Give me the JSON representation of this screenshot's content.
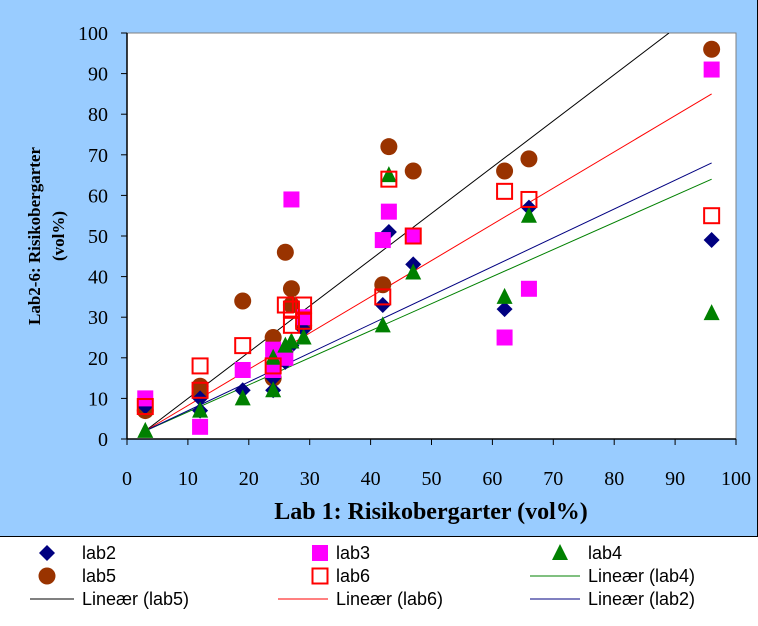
{
  "chart_data": {
    "type": "scatter",
    "xlabel": "Lab 1: Risikobergarter (vol%)",
    "ylabel_line1": "Lab2-6: Risikobergarter",
    "ylabel_line2": "(vol%)",
    "xlim": [
      0,
      100
    ],
    "ylim": [
      0,
      100
    ],
    "x_ticks": [
      "0",
      "10",
      "20",
      "30",
      "40",
      "50",
      "60",
      "70",
      "80",
      "90",
      "100"
    ],
    "y_ticks": [
      "0",
      "10",
      "20",
      "30",
      "40",
      "50",
      "60",
      "70",
      "80",
      "90",
      "100"
    ],
    "grid": "none",
    "legend_position": "bottom",
    "series": [
      {
        "name": "lab2",
        "marker": "diamond",
        "color": "#000080",
        "x": [
          3,
          12,
          12,
          19,
          24,
          24,
          26,
          27,
          29,
          42,
          43,
          47,
          62,
          66,
          96
        ],
        "y": [
          8,
          7,
          10,
          12,
          12,
          15,
          19,
          23,
          27,
          33,
          51,
          43,
          32,
          57,
          49
        ]
      },
      {
        "name": "lab3",
        "marker": "square",
        "color": "#ff00ff",
        "x": [
          3,
          12,
          19,
          24,
          24,
          26,
          27,
          29,
          42,
          43,
          47,
          62,
          66,
          96
        ],
        "y": [
          10,
          3,
          17,
          17,
          22,
          20,
          59,
          30,
          49,
          56,
          50,
          25,
          37,
          91
        ]
      },
      {
        "name": "lab4",
        "marker": "triangle",
        "color": "#008000",
        "x": [
          3,
          12,
          19,
          24,
          24,
          26,
          27,
          29,
          42,
          43,
          47,
          62,
          66,
          96
        ],
        "y": [
          2,
          7,
          10,
          12,
          20,
          23,
          24,
          25,
          28,
          65,
          41,
          35,
          55,
          31
        ]
      },
      {
        "name": "lab5",
        "marker": "circle",
        "color": "#993300",
        "x": [
          3,
          12,
          12,
          19,
          24,
          24,
          26,
          27,
          27,
          29,
          42,
          43,
          47,
          62,
          66,
          96
        ],
        "y": [
          7,
          11,
          13,
          34,
          25,
          15,
          46,
          37,
          33,
          28,
          38,
          72,
          66,
          66,
          69,
          96
        ]
      },
      {
        "name": "lab6",
        "marker": "open-square",
        "color": "#ff0000",
        "x": [
          3,
          12,
          12,
          19,
          24,
          26,
          27,
          27,
          29,
          29,
          42,
          43,
          47,
          62,
          66,
          96
        ],
        "y": [
          8,
          18,
          12,
          23,
          18,
          33,
          28,
          32,
          33,
          29,
          35,
          64,
          50,
          61,
          59,
          55
        ]
      }
    ],
    "trendlines": [
      {
        "name": "Lineær (lab4)",
        "color": "#008000",
        "x": [
          3,
          96
        ],
        "y": [
          2,
          64
        ]
      },
      {
        "name": "Lineær (lab5)",
        "color": "#000000",
        "x": [
          3,
          89
        ],
        "y": [
          2,
          100
        ]
      },
      {
        "name": "Lineær (lab6)",
        "color": "#ff0000",
        "x": [
          3,
          96
        ],
        "y": [
          2,
          85
        ]
      },
      {
        "name": "Lineær (lab2)",
        "color": "#000080",
        "x": [
          3,
          96
        ],
        "y": [
          2,
          68
        ]
      }
    ],
    "legend": [
      {
        "label": "lab2",
        "marker": "diamond",
        "color": "#000080"
      },
      {
        "label": "lab3",
        "marker": "square",
        "color": "#ff00ff"
      },
      {
        "label": "lab4",
        "marker": "triangle",
        "color": "#008000"
      },
      {
        "label": "lab5",
        "marker": "circle",
        "color": "#993300"
      },
      {
        "label": "lab6",
        "marker": "open-square",
        "color": "#ff0000"
      },
      {
        "label": "Lineær (lab4)",
        "marker": "line",
        "color": "#008000"
      },
      {
        "label": "Lineær (lab5)",
        "marker": "line",
        "color": "#000000"
      },
      {
        "label": "Lineær (lab6)",
        "marker": "line",
        "color": "#ff0000"
      },
      {
        "label": "Lineær (lab2)",
        "marker": "line",
        "color": "#000080"
      }
    ]
  },
  "colors": {
    "chart_background": "#99ccff",
    "plot_background": "#ffffff"
  }
}
